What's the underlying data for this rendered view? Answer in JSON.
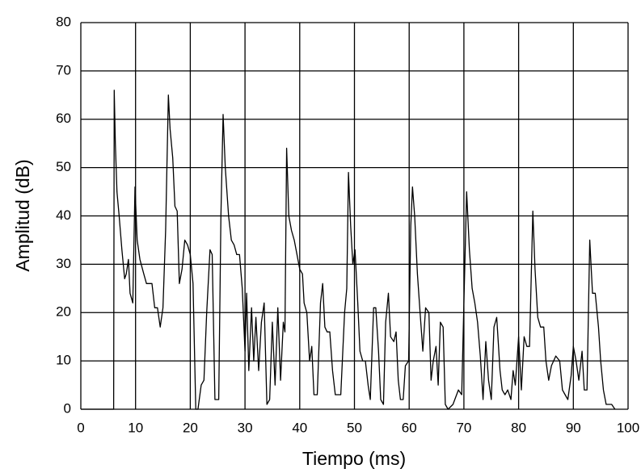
{
  "chart_data": {
    "type": "line",
    "xlabel": "Tiempo (ms)",
    "ylabel": "Amplitud (dB)",
    "xlim": [
      0,
      100
    ],
    "ylim": [
      0,
      80
    ],
    "xticks": [
      0,
      10,
      20,
      30,
      40,
      50,
      60,
      70,
      80,
      90,
      100
    ],
    "yticks": [
      0,
      10,
      20,
      30,
      40,
      50,
      60,
      70,
      80
    ],
    "grid": true,
    "x": [
      0,
      6,
      6.1,
      6.3,
      6.6,
      7,
      7.5,
      8,
      8.3,
      8.7,
      9,
      9.5,
      9.9,
      10.3,
      10.8,
      11.5,
      12,
      13,
      13.5,
      14,
      14.5,
      15,
      15.5,
      16,
      16.3,
      16.8,
      17.2,
      17.6,
      18,
      18.5,
      19,
      19.5,
      20,
      20.5,
      21,
      21.4,
      22,
      22.5,
      23,
      23.6,
      24,
      24.5,
      25.2,
      25.6,
      26,
      26.4,
      27,
      27.5,
      28,
      28.5,
      29,
      29.5,
      30,
      30.3,
      30.7,
      31.2,
      31.6,
      32,
      32.5,
      33,
      33.5,
      34,
      34.5,
      35,
      35.5,
      36,
      36.5,
      37,
      37.3,
      37.6,
      38,
      38.5,
      39,
      39.5,
      40,
      40.5,
      40.8,
      41.3,
      41.8,
      42.2,
      42.6,
      43.2,
      43.8,
      44.2,
      44.6,
      45,
      45.5,
      46,
      46.5,
      47,
      47.5,
      48.2,
      48.6,
      48.9,
      49.3,
      49.7,
      50.1,
      50.6,
      51,
      51.5,
      52,
      52.5,
      52.9,
      53.5,
      53.9,
      54.4,
      54.8,
      55.3,
      55.7,
      56.2,
      56.6,
      57.2,
      57.6,
      58,
      58.4,
      58.9,
      59.3,
      59.9,
      60.3,
      60.6,
      61,
      61.5,
      62,
      62.5,
      63,
      63.6,
      64,
      64.4,
      64.9,
      65.3,
      65.7,
      66.2,
      66.6,
      67.1,
      68,
      69,
      69.6,
      70,
      70.5,
      71,
      71.5,
      72,
      72.5,
      73,
      73.5,
      74,
      74.5,
      75,
      75.5,
      76,
      76.6,
      77,
      77.5,
      78,
      78.6,
      79,
      79.4,
      80,
      80.5,
      81,
      81.5,
      82,
      82.6,
      83,
      83.5,
      84,
      84.6,
      85,
      85.5,
      86,
      86.8,
      87.5,
      88,
      88.5,
      89,
      89.6,
      90,
      90.5,
      91,
      91.6,
      92,
      92.5,
      93,
      93.5,
      94,
      94.6,
      95,
      95.5,
      96,
      97,
      97.6
    ],
    "series": [
      {
        "color": "#000000",
        "values": [
          0,
          0,
          66,
          55,
          45,
          40,
          33,
          27,
          28,
          31,
          24,
          22,
          46,
          35,
          31,
          28,
          26,
          26,
          21,
          21,
          17,
          21,
          37,
          65,
          58,
          52,
          42,
          41,
          26,
          29,
          35,
          34,
          32,
          26,
          0,
          0,
          5,
          6,
          20,
          33,
          32,
          2,
          2,
          40,
          61,
          50,
          40,
          35,
          34,
          32,
          32,
          25,
          12,
          24,
          8,
          21,
          10,
          19,
          8,
          18,
          22,
          1,
          2,
          18,
          5,
          21,
          6,
          18,
          16,
          54,
          40,
          37,
          35,
          32,
          29,
          28,
          22,
          20,
          10,
          13,
          3,
          3,
          22,
          26,
          17,
          16,
          16,
          8,
          3,
          3,
          3,
          20,
          25,
          49,
          38,
          30,
          33,
          22,
          12,
          10,
          10,
          5,
          2,
          21,
          21,
          12,
          2,
          1,
          18,
          24,
          15,
          14,
          16,
          6,
          2,
          2,
          9,
          10,
          38,
          46,
          40,
          28,
          20,
          12,
          21,
          20,
          6,
          10,
          13,
          5,
          18,
          17,
          1,
          0,
          1,
          4,
          3,
          22,
          45,
          33,
          25,
          22,
          18,
          11,
          2,
          14,
          6,
          2,
          17,
          19,
          8,
          4,
          3,
          4,
          2,
          8,
          5,
          15,
          4,
          15,
          13,
          13,
          41,
          29,
          19,
          17,
          17,
          10,
          6,
          9,
          11,
          10,
          4,
          3,
          2,
          7,
          13,
          10,
          6,
          12,
          4,
          4,
          35,
          24,
          24,
          17,
          10,
          4,
          1,
          1,
          0
        ]
      }
    ]
  }
}
